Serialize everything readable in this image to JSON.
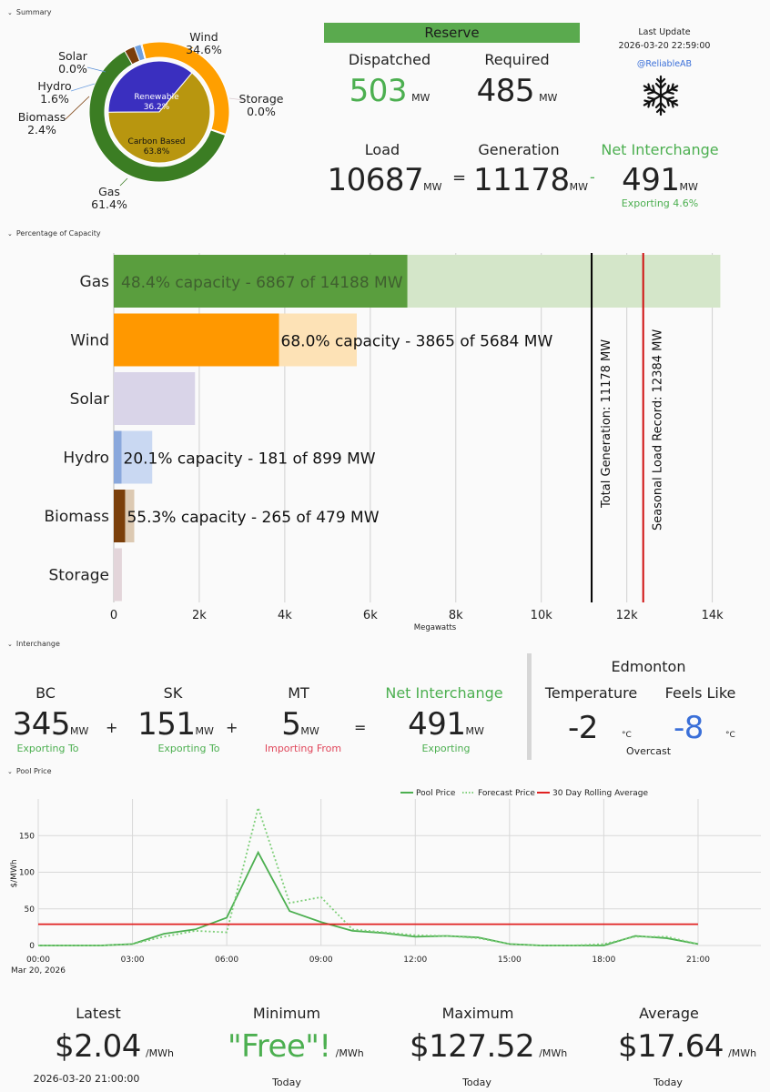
{
  "sections": {
    "summary": "Summary",
    "capacity": "Percentage of Capacity",
    "interchange": "Interchange",
    "pool": "Pool Price"
  },
  "donut": {
    "outer": [
      {
        "name": "Solar",
        "pct": "0.0%",
        "value": 0.0,
        "color": "#5b8fd6"
      },
      {
        "name": "Wind",
        "pct": "34.6%",
        "value": 34.6,
        "color": "#ff9f00"
      },
      {
        "name": "Storage",
        "pct": "0.0%",
        "value": 0.0,
        "color": "#d9c9cf"
      },
      {
        "name": "Gas",
        "pct": "61.4%",
        "value": 61.4,
        "color": "#3b7d23"
      },
      {
        "name": "Biomass",
        "pct": "2.4%",
        "value": 2.4,
        "color": "#7a3d0a"
      },
      {
        "name": "Hydro",
        "pct": "1.6%",
        "value": 1.6,
        "color": "#6fa0e0"
      }
    ],
    "inner": [
      {
        "name": "Renewable",
        "pct": "36.2%",
        "value": 36.2,
        "color": "#3a2fbf"
      },
      {
        "name": "Carbon Based",
        "pct": "63.8%",
        "value": 63.8,
        "color": "#b8960f"
      }
    ]
  },
  "reserve": {
    "title": "Reserve",
    "dispatched_label": "Dispatched",
    "dispatched_value": "503",
    "required_label": "Required",
    "required_value": "485",
    "unit": "MW"
  },
  "update": {
    "label": "Last Update",
    "timestamp": "2026-03-20 22:59:00",
    "handle": "@ReliableAB",
    "icon": "snowflake-icon"
  },
  "balance": {
    "load_label": "Load",
    "load_value": "10687",
    "eq": "=",
    "gen_label": "Generation",
    "gen_value": "11178",
    "minus": "-",
    "net_label": "Net Interchange",
    "net_value": "491",
    "net_sub": "Exporting 4.6%",
    "unit": "MW"
  },
  "capacity": {
    "xlabel": "Megawatts",
    "ticks": [
      "0",
      "2k",
      "4k",
      "6k",
      "8k",
      "10k",
      "12k",
      "14k"
    ],
    "tick_values": [
      0,
      2000,
      4000,
      6000,
      8000,
      10000,
      12000,
      14000
    ],
    "xmax": 14400,
    "total_generation": 11178,
    "total_generation_label": "Total Generation: 11178 MW",
    "seasonal_record": 12384,
    "seasonal_record_label": "Seasonal Load Record: 12384 MW",
    "rows": [
      {
        "name": "Gas",
        "gen": 6867,
        "cap": 14188,
        "color": "#5a9e3e",
        "light": "#d4e6c9",
        "label": "48.4% capacity - 6867 of 14188 MW",
        "label_inside": true
      },
      {
        "name": "Wind",
        "gen": 3865,
        "cap": 5684,
        "color": "#ff9800",
        "light": "#fde2b6",
        "label": "68.0% capacity - 3865 of 5684 MW",
        "label_inside": false
      },
      {
        "name": "Solar",
        "gen": 0,
        "cap": 1900,
        "color": "#b8b0d6",
        "light": "#d9d4e8",
        "label": "",
        "label_inside": false
      },
      {
        "name": "Hydro",
        "gen": 181,
        "cap": 899,
        "color": "#8aa8dc",
        "light": "#c9d8f2",
        "label": "20.1% capacity - 181 of 899 MW",
        "label_inside": false
      },
      {
        "name": "Biomass",
        "gen": 265,
        "cap": 479,
        "color": "#7b3f0a",
        "light": "#dcc9b2",
        "label": "55.3% capacity - 265 of 479 MW",
        "label_inside": false
      },
      {
        "name": "Storage",
        "gen": 0,
        "cap": 190,
        "color": "#c9a8b4",
        "light": "#e3d5da",
        "label": "",
        "label_inside": false
      }
    ]
  },
  "interchange": {
    "items": [
      {
        "name": "BC",
        "value": "345",
        "unit": "MW",
        "status": "Exporting To",
        "color": "#4caf50"
      },
      {
        "name": "SK",
        "value": "151",
        "unit": "MW",
        "status": "Exporting To",
        "color": "#4caf50"
      },
      {
        "name": "MT",
        "value": "5",
        "unit": "MW",
        "status": "Importing From",
        "color": "#e0475b"
      }
    ],
    "plus": "+",
    "eq": "=",
    "net_label": "Net Interchange",
    "net_value": "491",
    "net_unit": "MW",
    "net_status": "Exporting"
  },
  "weather": {
    "city": "Edmonton",
    "temp_label": "Temperature",
    "temp_value": "-2",
    "feels_label": "Feels Like",
    "feels_value": "-8",
    "unit": "°C",
    "condition": "Overcast"
  },
  "chart_data": {
    "type": "line",
    "ylabel": "$/MWh",
    "ylim": [
      0,
      200
    ],
    "yticks": [
      0,
      50,
      100,
      150
    ],
    "xticks": [
      "00:00",
      "03:00",
      "06:00",
      "09:00",
      "12:00",
      "15:00",
      "18:00",
      "21:00"
    ],
    "xtick_hours": [
      0,
      3,
      6,
      9,
      12,
      15,
      18,
      21
    ],
    "date_label": "Mar 20, 2026",
    "xlim": [
      0,
      23
    ],
    "legend": "top-center",
    "series": [
      {
        "name": "Pool Price",
        "style": "solid",
        "color": "#4caf50",
        "x": [
          0,
          1,
          2,
          3,
          4,
          5,
          6,
          7,
          8,
          9,
          10,
          11,
          12,
          13,
          14,
          15,
          16,
          17,
          18,
          19,
          20,
          21
        ],
        "y": [
          0,
          0,
          0,
          2,
          16,
          22,
          38,
          127,
          47,
          32,
          20,
          17,
          12,
          13,
          11,
          2,
          0,
          0,
          0,
          13,
          10,
          2
        ]
      },
      {
        "name": "Forecast Price",
        "style": "dotted",
        "color": "#7fcf7a",
        "x": [
          0,
          1,
          2,
          3,
          4,
          5,
          6,
          7,
          8,
          9,
          10,
          11,
          12,
          13,
          14,
          15,
          16,
          17,
          18,
          19,
          20,
          21
        ],
        "y": [
          0,
          0,
          0,
          2,
          12,
          20,
          18,
          188,
          58,
          66,
          22,
          18,
          14,
          13,
          10,
          2,
          0,
          0,
          2,
          12,
          12,
          2
        ]
      },
      {
        "name": "30 Day Rolling Average",
        "style": "solid",
        "color": "#e02020",
        "x": [
          0,
          21
        ],
        "y": [
          29,
          29
        ]
      }
    ]
  },
  "price_stats": {
    "latest_label": "Latest",
    "latest_value": "$2.04",
    "latest_sub": "2026-03-20 21:00:00",
    "min_label": "Minimum",
    "min_value": "\"Free\"!",
    "min_sub": "Today",
    "max_label": "Maximum",
    "max_value": "$127.52",
    "max_sub": "Today",
    "avg_label": "Average",
    "avg_value": "$17.64",
    "avg_sub": "Today",
    "unit": "/MWh"
  }
}
